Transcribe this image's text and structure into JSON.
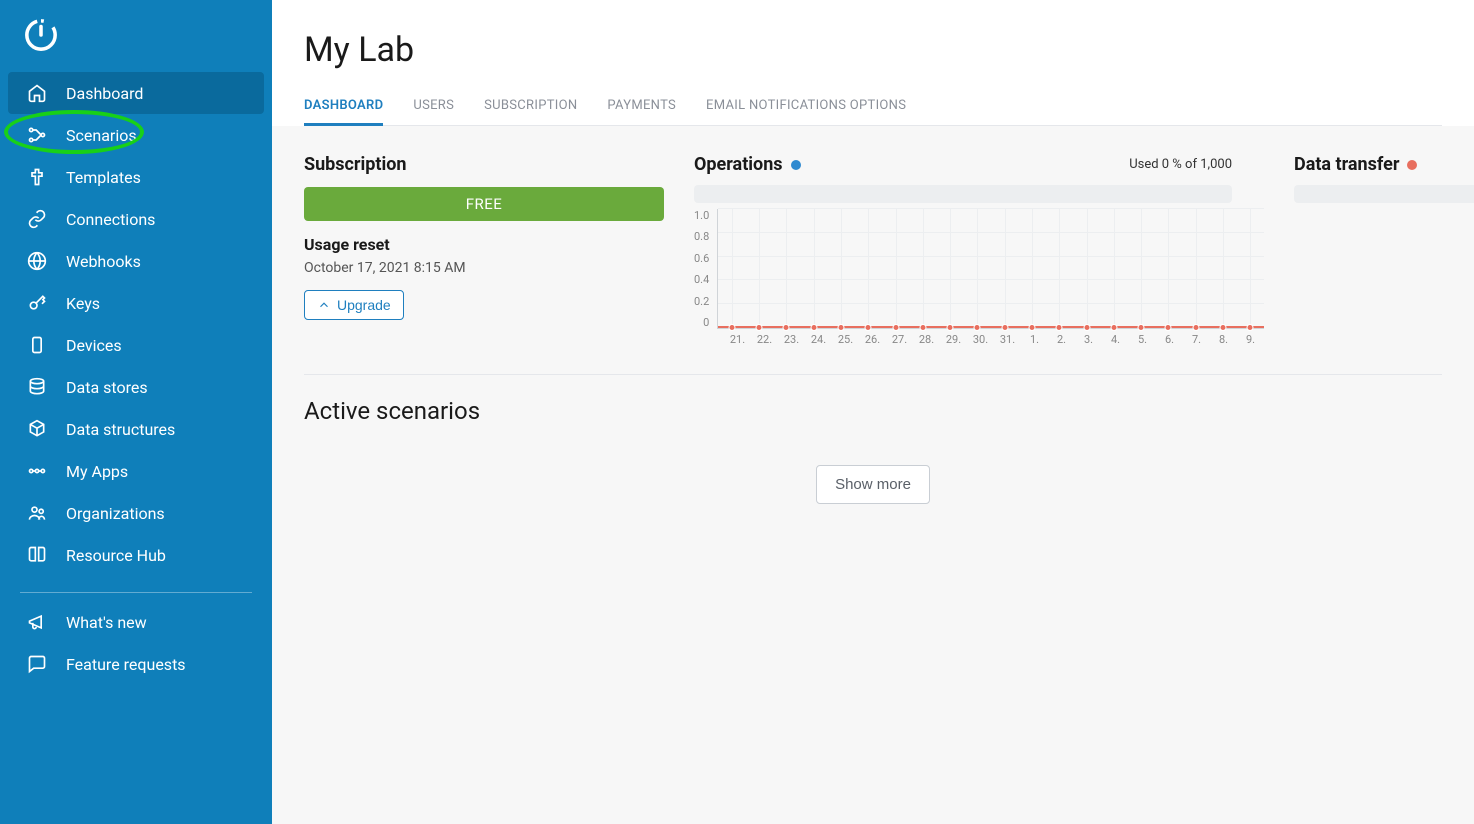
{
  "sidebar": {
    "items": [
      {
        "label": "Dashboard",
        "icon": "home",
        "active": true
      },
      {
        "label": "Scenarios",
        "icon": "scenarios",
        "highlighted": true
      },
      {
        "label": "Templates",
        "icon": "templates"
      },
      {
        "label": "Connections",
        "icon": "connections"
      },
      {
        "label": "Webhooks",
        "icon": "webhooks"
      },
      {
        "label": "Keys",
        "icon": "keys"
      },
      {
        "label": "Devices",
        "icon": "devices"
      },
      {
        "label": "Data stores",
        "icon": "datastores"
      },
      {
        "label": "Data structures",
        "icon": "datastructures"
      },
      {
        "label": "My Apps",
        "icon": "myapps"
      },
      {
        "label": "Organizations",
        "icon": "organizations"
      },
      {
        "label": "Resource Hub",
        "icon": "resourcehub"
      }
    ],
    "secondary": [
      {
        "label": "What's new",
        "icon": "whatsnew"
      },
      {
        "label": "Feature requests",
        "icon": "featurerequests"
      }
    ]
  },
  "header": {
    "title": "My Lab",
    "tabs": [
      {
        "label": "DASHBOARD",
        "active": true
      },
      {
        "label": "USERS"
      },
      {
        "label": "SUBSCRIPTION"
      },
      {
        "label": "PAYMENTS"
      },
      {
        "label": "EMAIL NOTIFICATIONS OPTIONS"
      }
    ]
  },
  "subscription": {
    "title": "Subscription",
    "plan_badge": "FREE",
    "badge_color": "#6aaa3c",
    "usage_reset_label": "Usage reset",
    "usage_reset_value": "October 17, 2021 8:15 AM",
    "upgrade_label": "Upgrade"
  },
  "operations": {
    "title": "Operations",
    "dot_color": "#2f8ad0",
    "usage_text": "Used 0 % of 1,000",
    "chart": {
      "type": "line",
      "ylim": [
        0,
        1.0
      ],
      "ytick_step": 0.2,
      "y_ticks": [
        "1.0",
        "0.8",
        "0.6",
        "0.4",
        "0.2",
        "0"
      ],
      "x_labels": [
        "21.",
        "22.",
        "23.",
        "24.",
        "25.",
        "26.",
        "27.",
        "28.",
        "29.",
        "30.",
        "31.",
        "1.",
        "2.",
        "3.",
        "4.",
        "5.",
        "6.",
        "7.",
        "8.",
        "9."
      ],
      "values": [
        0,
        0,
        0,
        0,
        0,
        0,
        0,
        0,
        0,
        0,
        0,
        0,
        0,
        0,
        0,
        0,
        0,
        0,
        0,
        0
      ],
      "line_color": "#e86f5f",
      "grid_color": "#eceef0",
      "axis_color": "#d0d4d8",
      "background_color": "#f7f7f7",
      "tick_fontsize": 11
    }
  },
  "data_transfer": {
    "title": "Data transfer",
    "dot_color": "#e86f5f"
  },
  "active_scenarios": {
    "title": "Active scenarios",
    "show_more_label": "Show more"
  }
}
